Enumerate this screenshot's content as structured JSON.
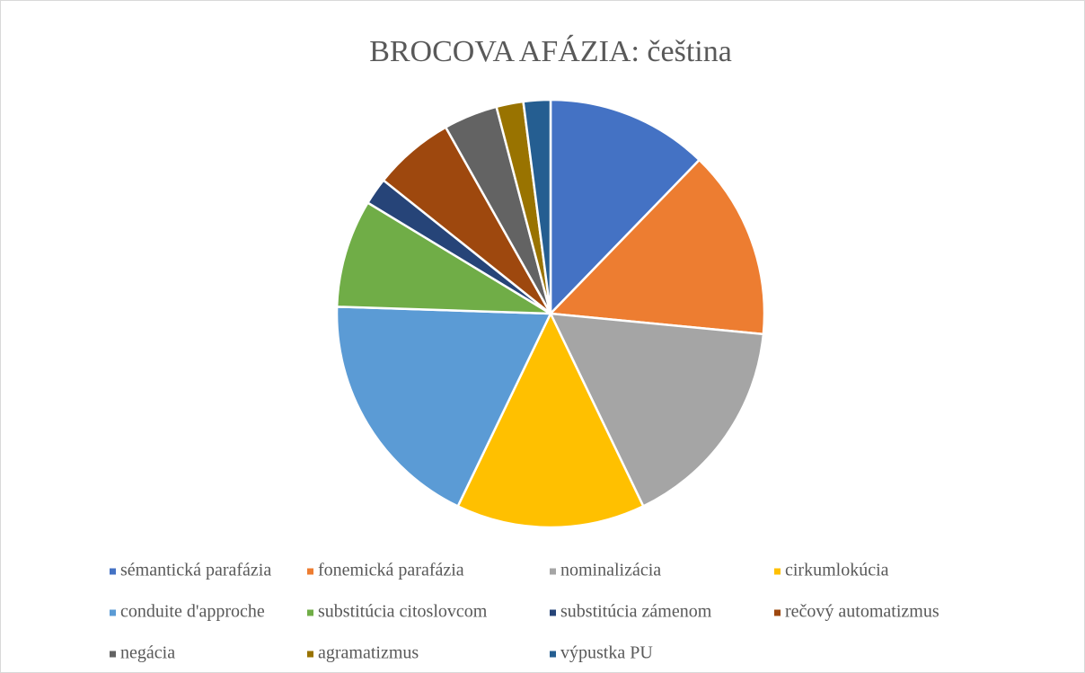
{
  "chart_data": {
    "type": "pie",
    "title": "BROCOVA AFÁZIA: čeština",
    "categories": [
      "sémantická parafázia",
      "fonemická parafázia",
      "nominalizácia",
      "cirkumlokúcia",
      "conduite d'approche",
      "substitúcia citoslovcom",
      "substitúcia zámenom",
      "rečový automatizmus",
      "negácia",
      "agramatizmus",
      "výpustka PU"
    ],
    "values": [
      6,
      7,
      8,
      7,
      9,
      4,
      1,
      3,
      2,
      1,
      1
    ],
    "colors": [
      "#4472c4",
      "#ed7d31",
      "#a5a5a5",
      "#ffc000",
      "#5b9bd5",
      "#70ad47",
      "#264478",
      "#9e480e",
      "#636363",
      "#997300",
      "#255e91"
    ],
    "legend": "bottom"
  }
}
